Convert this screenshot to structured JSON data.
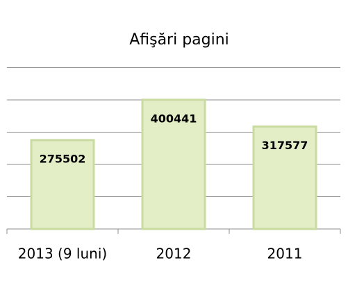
{
  "chart_data": {
    "type": "bar",
    "title": "Afişări pagini",
    "categories": [
      "2013 (9 luni)",
      "2012",
      "2011"
    ],
    "values": [
      275502,
      400441,
      317577
    ],
    "color": "#e3eec6",
    "ylim": [
      0,
      500000
    ],
    "yticks": [
      0,
      100000,
      200000,
      300000,
      400000,
      500000
    ],
    "grid": true
  }
}
